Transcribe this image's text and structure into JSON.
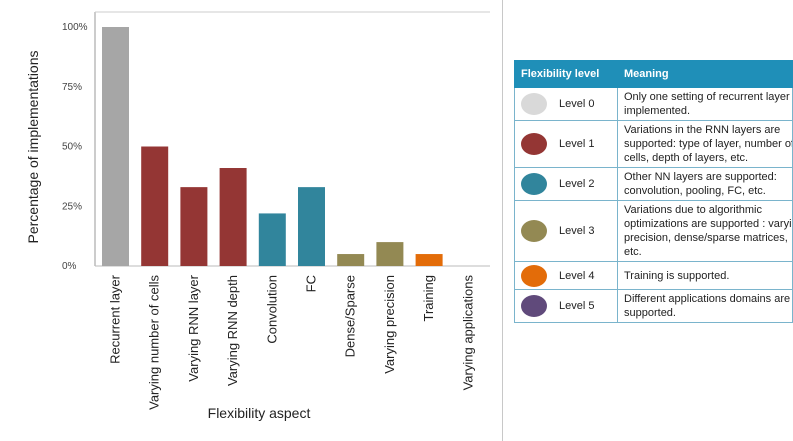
{
  "chart_data": {
    "type": "bar",
    "title": "",
    "xlabel": "Flexibility aspect",
    "ylabel": "Percentage of implementations",
    "ylim": [
      0,
      100
    ],
    "yticks": [
      0,
      25,
      50,
      75,
      100
    ],
    "ytick_labels": [
      "0%",
      "25%",
      "50%",
      "75%",
      "100%"
    ],
    "categories": [
      "Recurrent layer",
      "Varying number of cells",
      "Varying RNN layer",
      "Varying RNN depth",
      "Convolution",
      "FC",
      "Dense/Sparse",
      "Varying precision",
      "Training",
      "Varying applications"
    ],
    "values": [
      100,
      50,
      33,
      41,
      22,
      33,
      5,
      10,
      5,
      0
    ],
    "bar_levels": [
      0,
      1,
      1,
      1,
      2,
      2,
      3,
      3,
      4,
      5
    ],
    "grid": false,
    "legend": "right"
  },
  "level_colors": [
    "#a6a6a6",
    "#943634",
    "#31859c",
    "#938953",
    "#e36c09",
    "#604a7b"
  ],
  "legend": {
    "header_level": "Flexibility level",
    "header_meaning": "Meaning",
    "rows": [
      {
        "level": "Level 0",
        "color": "#d9d9d9",
        "meaning": [
          "Only one setting of recurrent layer is",
          "implemented."
        ]
      },
      {
        "level": "Level 1",
        "color": "#943634",
        "meaning": [
          "Variations in the RNN layers are",
          "supported:  type of layer,  number of",
          "cells, depth of layers, etc."
        ]
      },
      {
        "level": "Level 2",
        "color": "#31859c",
        "meaning": [
          "Other NN layers are supported:",
          "convolution, pooling, FC, etc."
        ]
      },
      {
        "level": "Level 3",
        "color": "#938953",
        "meaning": [
          "Variations due to algorithmic",
          "optimizations are supported : varying",
          "precision, dense/sparse matrices,",
          "etc."
        ]
      },
      {
        "level": "Level 4",
        "color": "#e36c09",
        "meaning": [
          "Training is supported."
        ]
      },
      {
        "level": "Level 5",
        "color": "#604a7b",
        "meaning": [
          "Different applications domains are",
          "supported."
        ]
      }
    ]
  }
}
